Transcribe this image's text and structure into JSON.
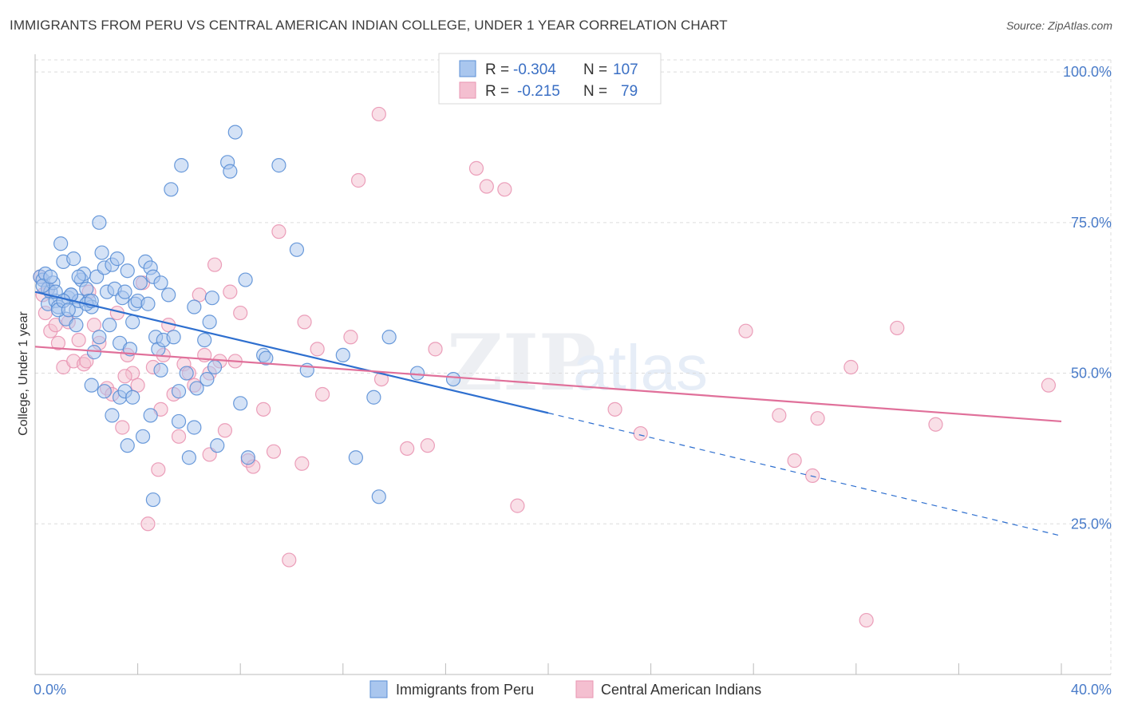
{
  "title": "IMMIGRANTS FROM PERU VS CENTRAL AMERICAN INDIAN COLLEGE, UNDER 1 YEAR CORRELATION CHART",
  "source": "Source: ZipAtlas.com",
  "watermark": {
    "zip": "ZIP",
    "atlas": "atlas"
  },
  "colors": {
    "blue_fill": "#a9c6ee",
    "blue_stroke": "#5a8fd6",
    "blue_line": "#2e6fcf",
    "pink_fill": "#f4bfd0",
    "pink_stroke": "#e995b2",
    "pink_line": "#e0709a",
    "tick_text": "#4a7cc9",
    "grid": "#dcdcdc"
  },
  "legend_box": {
    "rows": [
      {
        "r_label": "R =",
        "r_value": "-0.304",
        "n_label": "N =",
        "n_value": "107",
        "color": "blue"
      },
      {
        "r_label": "R =",
        "r_value": "-0.215",
        "n_label": "N =",
        "n_value": "79",
        "color": "pink"
      }
    ]
  },
  "chart_data": {
    "type": "scatter",
    "title": "IMMIGRANTS FROM PERU VS CENTRAL AMERICAN INDIAN COLLEGE, UNDER 1 YEAR CORRELATION CHART",
    "xlabel": "",
    "ylabel": "College, Under 1 year",
    "xlim": [
      0,
      40
    ],
    "ylim": [
      0,
      102
    ],
    "x_tick_labels": [
      "0.0%",
      "40.0%"
    ],
    "y_tick_values": [
      25,
      50,
      75,
      100
    ],
    "y_tick_labels": [
      "25.0%",
      "50.0%",
      "75.0%",
      "100.0%"
    ],
    "grid": true,
    "legend_position": "top-center",
    "series": [
      {
        "name": "Immigrants from Peru",
        "color": "blue",
        "R": -0.304,
        "N": 107,
        "trend": {
          "x0": 0,
          "y0": 63.5,
          "x1": 20,
          "y1": 43.4,
          "dashed_to_x": 40,
          "dashed_to_y": 23.0
        },
        "points": [
          [
            0.2,
            66.0
          ],
          [
            0.3,
            65.5
          ],
          [
            0.4,
            66.5
          ],
          [
            0.5,
            64.0
          ],
          [
            0.6,
            63.5
          ],
          [
            0.7,
            65.0
          ],
          [
            0.5,
            61.5
          ],
          [
            0.8,
            62.0
          ],
          [
            0.9,
            61.0
          ],
          [
            1.0,
            71.5
          ],
          [
            1.1,
            68.5
          ],
          [
            1.2,
            59.0
          ],
          [
            1.3,
            62.5
          ],
          [
            1.4,
            63.0
          ],
          [
            1.5,
            69.0
          ],
          [
            1.6,
            60.5
          ],
          [
            1.7,
            62.0
          ],
          [
            1.8,
            65.5
          ],
          [
            1.9,
            66.5
          ],
          [
            2.0,
            64.0
          ],
          [
            2.1,
            62.0
          ],
          [
            2.2,
            61.0
          ],
          [
            2.3,
            53.5
          ],
          [
            2.4,
            66.0
          ],
          [
            2.5,
            75.0
          ],
          [
            2.6,
            70.0
          ],
          [
            2.7,
            67.5
          ],
          [
            2.8,
            63.5
          ],
          [
            2.9,
            58.0
          ],
          [
            3.0,
            68.0
          ],
          [
            3.1,
            64.0
          ],
          [
            3.2,
            69.0
          ],
          [
            3.3,
            55.0
          ],
          [
            3.4,
            62.5
          ],
          [
            3.5,
            63.5
          ],
          [
            3.6,
            67.0
          ],
          [
            3.7,
            54.0
          ],
          [
            3.8,
            58.5
          ],
          [
            3.9,
            61.5
          ],
          [
            4.0,
            62.0
          ],
          [
            4.1,
            65.0
          ],
          [
            4.3,
            68.5
          ],
          [
            4.5,
            67.5
          ],
          [
            4.6,
            66.0
          ],
          [
            4.7,
            56.0
          ],
          [
            4.8,
            54.0
          ],
          [
            4.9,
            50.5
          ],
          [
            5.0,
            55.5
          ],
          [
            5.2,
            63.0
          ],
          [
            5.3,
            80.5
          ],
          [
            5.4,
            56.0
          ],
          [
            5.6,
            42.0
          ],
          [
            5.7,
            84.5
          ],
          [
            5.9,
            50.0
          ],
          [
            6.2,
            61.0
          ],
          [
            6.3,
            47.5
          ],
          [
            6.6,
            55.5
          ],
          [
            6.7,
            49.0
          ],
          [
            6.8,
            58.5
          ],
          [
            7.0,
            51.0
          ],
          [
            7.5,
            85.0
          ],
          [
            7.6,
            83.5
          ],
          [
            7.8,
            90.0
          ],
          [
            8.0,
            45.0
          ],
          [
            8.2,
            65.5
          ],
          [
            8.3,
            36.0
          ],
          [
            8.9,
            53.0
          ],
          [
            9.0,
            52.5
          ],
          [
            9.5,
            84.5
          ],
          [
            10.2,
            70.5
          ],
          [
            10.6,
            50.5
          ],
          [
            12.0,
            53.0
          ],
          [
            12.5,
            36.0
          ],
          [
            13.2,
            46.0
          ],
          [
            13.4,
            29.5
          ],
          [
            13.8,
            56.0
          ],
          [
            14.9,
            50.0
          ],
          [
            16.3,
            49.0
          ],
          [
            2.2,
            48.0
          ],
          [
            2.7,
            47.0
          ],
          [
            3.3,
            46.0
          ],
          [
            3.5,
            47.0
          ],
          [
            3.6,
            38.0
          ],
          [
            4.2,
            39.5
          ],
          [
            4.5,
            43.0
          ],
          [
            4.6,
            29.0
          ],
          [
            4.9,
            65.0
          ],
          [
            6.0,
            36.0
          ],
          [
            6.2,
            41.0
          ],
          [
            7.1,
            38.0
          ],
          [
            3.0,
            43.0
          ],
          [
            1.4,
            63.0
          ],
          [
            1.6,
            58.0
          ],
          [
            2.0,
            61.5
          ],
          [
            2.5,
            56.0
          ],
          [
            0.8,
            63.5
          ],
          [
            0.9,
            60.5
          ],
          [
            1.7,
            66.0
          ],
          [
            2.2,
            62.0
          ],
          [
            3.8,
            46.0
          ],
          [
            4.4,
            61.5
          ],
          [
            5.6,
            47.0
          ],
          [
            6.9,
            62.5
          ],
          [
            0.3,
            64.5
          ],
          [
            0.6,
            66.0
          ],
          [
            1.1,
            62.0
          ],
          [
            1.3,
            60.5
          ]
        ]
      },
      {
        "name": "Central American Indians",
        "color": "pink",
        "R": -0.215,
        "N": 79,
        "trend": {
          "x0": 0,
          "y0": 54.4,
          "x1": 40,
          "y1": 42.0
        },
        "points": [
          [
            0.2,
            66.0
          ],
          [
            0.3,
            63.0
          ],
          [
            0.4,
            60.0
          ],
          [
            0.6,
            57.0
          ],
          [
            0.8,
            58.0
          ],
          [
            0.9,
            55.0
          ],
          [
            1.1,
            51.0
          ],
          [
            1.3,
            58.5
          ],
          [
            1.5,
            52.0
          ],
          [
            1.7,
            55.5
          ],
          [
            1.9,
            51.5
          ],
          [
            2.1,
            63.5
          ],
          [
            2.3,
            58.0
          ],
          [
            2.5,
            55.0
          ],
          [
            2.8,
            47.5
          ],
          [
            3.0,
            46.5
          ],
          [
            3.2,
            60.0
          ],
          [
            3.4,
            41.0
          ],
          [
            3.6,
            53.0
          ],
          [
            3.8,
            50.0
          ],
          [
            4.0,
            48.0
          ],
          [
            4.2,
            65.0
          ],
          [
            4.4,
            25.0
          ],
          [
            4.6,
            51.0
          ],
          [
            4.8,
            34.0
          ],
          [
            5.0,
            53.0
          ],
          [
            5.2,
            58.0
          ],
          [
            5.4,
            46.5
          ],
          [
            5.6,
            39.5
          ],
          [
            5.8,
            51.5
          ],
          [
            6.0,
            50.0
          ],
          [
            6.2,
            48.0
          ],
          [
            6.4,
            63.0
          ],
          [
            6.6,
            53.0
          ],
          [
            6.8,
            36.5
          ],
          [
            7.0,
            68.0
          ],
          [
            7.2,
            52.0
          ],
          [
            7.4,
            40.5
          ],
          [
            7.6,
            63.5
          ],
          [
            7.8,
            52.0
          ],
          [
            8.0,
            60.0
          ],
          [
            8.3,
            35.5
          ],
          [
            8.5,
            34.5
          ],
          [
            8.9,
            44.0
          ],
          [
            9.3,
            37.0
          ],
          [
            9.5,
            73.5
          ],
          [
            9.9,
            19.0
          ],
          [
            10.4,
            35.0
          ],
          [
            10.5,
            58.5
          ],
          [
            11.0,
            54.0
          ],
          [
            11.2,
            46.5
          ],
          [
            12.3,
            56.0
          ],
          [
            12.6,
            82.0
          ],
          [
            13.4,
            93.0
          ],
          [
            13.5,
            49.0
          ],
          [
            14.5,
            37.5
          ],
          [
            15.3,
            38.0
          ],
          [
            15.6,
            54.0
          ],
          [
            17.2,
            84.0
          ],
          [
            17.6,
            81.0
          ],
          [
            18.3,
            80.5
          ],
          [
            18.8,
            28.0
          ],
          [
            22.6,
            44.0
          ],
          [
            23.6,
            40.0
          ],
          [
            27.7,
            57.0
          ],
          [
            29.0,
            43.0
          ],
          [
            29.6,
            35.5
          ],
          [
            30.3,
            33.0
          ],
          [
            30.5,
            42.5
          ],
          [
            31.8,
            51.0
          ],
          [
            32.4,
            9.0
          ],
          [
            33.6,
            57.5
          ],
          [
            35.1,
            41.5
          ],
          [
            39.5,
            48.0
          ],
          [
            3.5,
            49.5
          ],
          [
            2.0,
            52.0
          ],
          [
            6.8,
            50.0
          ],
          [
            4.9,
            44.0
          ],
          [
            0.5,
            64.0
          ]
        ]
      }
    ]
  },
  "bottom_legend": [
    {
      "label": "Immigrants from Peru",
      "color": "blue"
    },
    {
      "label": "Central American Indians",
      "color": "pink"
    }
  ]
}
